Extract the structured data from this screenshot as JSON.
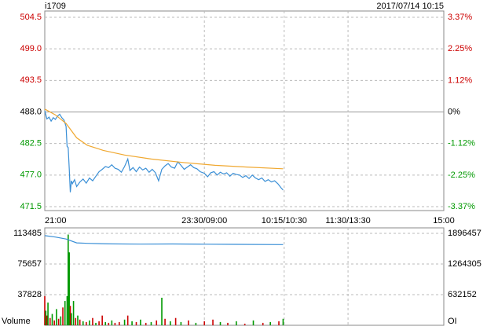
{
  "chart_data": [
    {
      "type": "price",
      "title": "i1709",
      "subtitle": "2017/07/14 10:15",
      "up_color": "#cc0000",
      "down_color": "#009900",
      "flat_color": "#000000",
      "xlim": [
        0,
        375
      ],
      "xticks": [
        {
          "value": 0,
          "label": "21:00"
        },
        {
          "value": 150,
          "label": "23:30/09:00"
        },
        {
          "value": 225,
          "label": "10:15/10:30"
        },
        {
          "value": 285,
          "label": "11:30/13:30"
        },
        {
          "value": 375,
          "label": "15:00"
        }
      ],
      "ylim": [
        471.5,
        504.5
      ],
      "yticks": [
        {
          "value": 504.5,
          "label": "504.5"
        },
        {
          "value": 499,
          "label": "499.0"
        },
        {
          "value": 493.5,
          "label": "493.5"
        },
        {
          "value": 488,
          "label": "488.0"
        },
        {
          "value": 482.5,
          "label": "482.5"
        },
        {
          "value": 477,
          "label": "477.0"
        },
        {
          "value": 471.5,
          "label": "471.5"
        }
      ],
      "y2lim": [
        -3.37,
        3.37
      ],
      "y2ticks": [
        {
          "value": 3.37,
          "label": "3.37%"
        },
        {
          "value": 2.25,
          "label": "2.25%"
        },
        {
          "value": 1.12,
          "label": "1.12%"
        },
        {
          "value": 0,
          "label": "0%"
        },
        {
          "value": -1.12,
          "label": "-1.12%"
        },
        {
          "value": -2.25,
          "label": "-2.25%"
        },
        {
          "value": -3.37,
          "label": "-3.37%"
        }
      ],
      "grid": true,
      "series": [
        {
          "color": "#3a8fd6",
          "x": [
            0,
            2,
            4,
            6,
            8,
            10,
            12,
            14,
            16,
            18,
            20,
            21,
            22,
            23,
            24,
            25,
            26,
            28,
            30,
            33,
            36,
            39,
            42,
            45,
            48,
            51,
            54,
            57,
            60,
            63,
            66,
            69,
            72,
            75,
            78,
            80,
            83,
            86,
            89,
            92,
            95,
            98,
            101,
            104,
            107,
            110,
            113,
            116,
            119,
            122,
            125,
            128,
            131,
            134,
            137,
            140,
            143,
            146,
            150,
            153,
            156,
            159,
            162,
            165,
            168,
            171,
            174,
            177,
            180,
            183,
            186,
            189,
            192,
            195,
            198,
            201,
            204,
            207,
            210,
            213,
            216,
            219,
            222,
            224
          ],
          "values": [
            488.2,
            486.8,
            487.1,
            486.4,
            487.0,
            486.7,
            487.3,
            487.6,
            487.0,
            486.6,
            485.5,
            482.0,
            481.8,
            478.0,
            474.0,
            476.0,
            475.5,
            476.2,
            475.0,
            475.8,
            476.3,
            475.6,
            476.5,
            476.0,
            476.8,
            477.6,
            478.0,
            478.5,
            478.3,
            478.8,
            478.2,
            478.0,
            477.5,
            478.5,
            479.8,
            477.8,
            478.3,
            477.6,
            478.4,
            477.9,
            478.2,
            477.5,
            478.0,
            477.4,
            476.0,
            478.0,
            478.6,
            479.0,
            478.4,
            478.2,
            479.3,
            478.7,
            478.0,
            478.4,
            478.8,
            478.3,
            478.1,
            477.6,
            477.3,
            476.7,
            477.4,
            477.6,
            477.0,
            477.5,
            477.2,
            477.4,
            476.8,
            477.3,
            477.1,
            477.0,
            476.6,
            476.9,
            476.4,
            477.0,
            476.5,
            476.2,
            476.5,
            475.9,
            476.2,
            475.8,
            476.0,
            475.5,
            474.8,
            474.4
          ]
        },
        {
          "color": "#f0a830",
          "x": [
            0,
            10,
            20,
            30,
            40,
            55,
            75,
            100,
            130,
            160,
            190,
            224
          ],
          "values": [
            488.5,
            487.5,
            486.0,
            483.5,
            482.2,
            481.3,
            480.5,
            479.8,
            479.2,
            478.7,
            478.4,
            478.1
          ]
        }
      ]
    },
    {
      "type": "volume",
      "ylabel": "Volume",
      "y2label": "OI",
      "xlim": [
        0,
        375
      ],
      "ylim": [
        0,
        113485
      ],
      "yticks": [
        113485,
        75657,
        37828
      ],
      "y2lim": [
        0,
        1896457
      ],
      "y2ticks": [
        1896457,
        1264305,
        632152
      ],
      "grid": true,
      "bars": {
        "x": [
          0,
          1,
          2,
          3,
          5,
          7,
          9,
          11,
          13,
          15,
          17,
          19,
          21,
          22,
          23,
          24,
          25,
          27,
          29,
          31,
          33,
          36,
          39,
          42,
          45,
          48,
          51,
          54,
          57,
          60,
          63,
          66,
          70,
          75,
          78,
          82,
          86,
          90,
          95,
          100,
          105,
          110,
          113,
          118,
          123,
          128,
          135,
          142,
          150,
          158,
          165,
          172,
          180,
          188,
          196,
          205,
          212,
          220,
          224
        ],
        "values": [
          36000,
          18000,
          12000,
          28000,
          9000,
          14000,
          6000,
          20000,
          8000,
          11000,
          22000,
          30000,
          36000,
          112000,
          90000,
          24000,
          15000,
          30000,
          9000,
          12000,
          7000,
          5000,
          4000,
          6000,
          9000,
          3000,
          5000,
          12000,
          4000,
          3000,
          6000,
          3000,
          4000,
          7000,
          12000,
          5000,
          4000,
          7000,
          3000,
          4000,
          6000,
          34000,
          8000,
          5000,
          9000,
          4000,
          6000,
          3000,
          5000,
          7000,
          4000,
          3000,
          5000,
          2000,
          6000,
          3000,
          4000,
          5000,
          8000
        ],
        "colors": [
          "#cc0000",
          "#009900",
          "#cc0000",
          "#009900",
          "#cc0000",
          "#009900",
          "#cc0000",
          "#009900",
          "#cc0000",
          "#009900",
          "#cc0000",
          "#009900",
          "#009900",
          "#009900",
          "#009900",
          "#cc0000",
          "#009900",
          "#009900",
          "#cc0000",
          "#009900",
          "#cc0000",
          "#009900",
          "#cc0000",
          "#009900",
          "#cc0000",
          "#009900",
          "#cc0000",
          "#cc0000",
          "#009900",
          "#cc0000",
          "#009900",
          "#cc0000",
          "#cc0000",
          "#009900",
          "#cc0000",
          "#009900",
          "#cc0000",
          "#009900",
          "#cc0000",
          "#009900",
          "#cc0000",
          "#009900",
          "#cc0000",
          "#009900",
          "#cc0000",
          "#009900",
          "#cc0000",
          "#009900",
          "#cc0000",
          "#cc0000",
          "#009900",
          "#cc0000",
          "#009900",
          "#cc0000",
          "#009900",
          "#cc0000",
          "#009900",
          "#cc0000",
          "#009900"
        ]
      },
      "oi": {
        "color": "#3a8fd6",
        "axis": "y2",
        "x": [
          0,
          10,
          20,
          30,
          40,
          60,
          90,
          120,
          150,
          180,
          224
        ],
        "values": [
          1850000,
          1820000,
          1780000,
          1700000,
          1690000,
          1680000,
          1675000,
          1678000,
          1672000,
          1670000,
          1665000
        ]
      }
    }
  ]
}
